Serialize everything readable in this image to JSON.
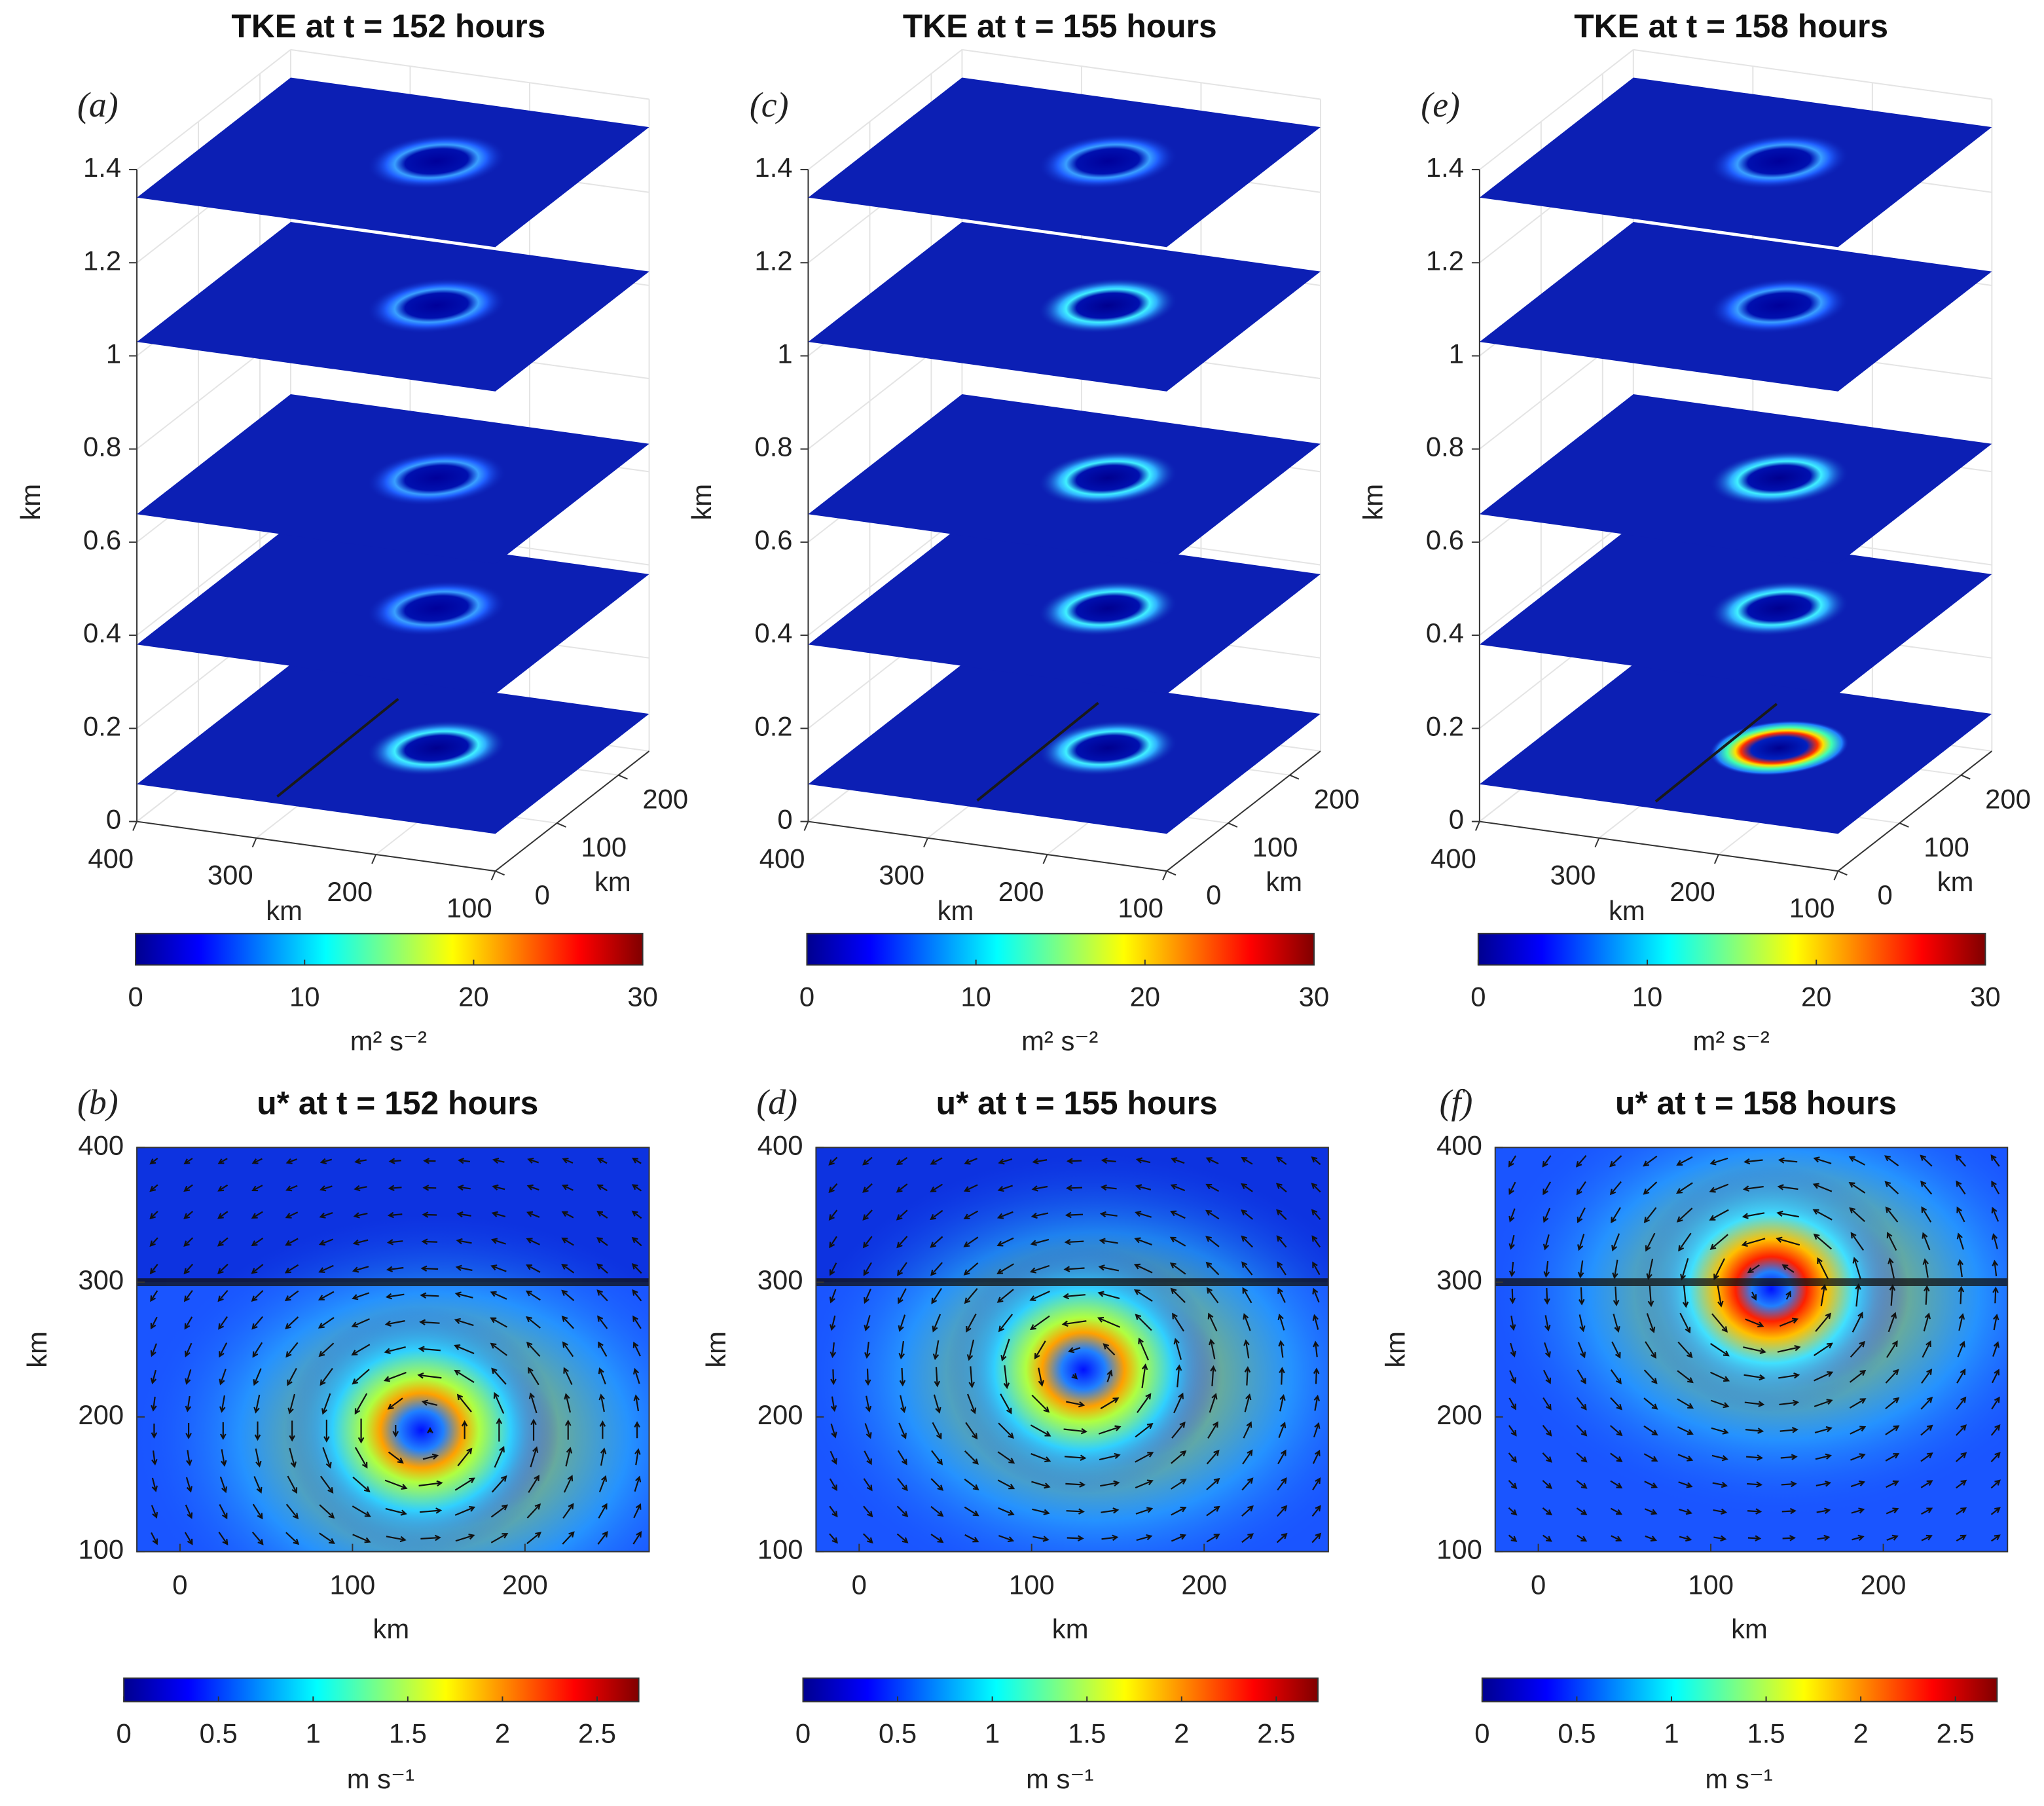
{
  "chart_data": [
    {
      "type": "slice3d",
      "panel": "(a)",
      "title": "TKE at t = 152 hours",
      "xlabel": "km",
      "ylabel": "km",
      "zlabel": "km",
      "xlim": [
        100,
        400
      ],
      "xticks": [
        100,
        200,
        300,
        400
      ],
      "ylim": [
        0,
        250
      ],
      "yticks": [
        0,
        100,
        200
      ],
      "zlim": [
        0,
        1.4
      ],
      "zticks": [
        0,
        0.2,
        0.4,
        0.6,
        0.8,
        1,
        1.2,
        1.4
      ],
      "slice_levels": [
        0.08,
        0.38,
        0.66,
        1.03,
        1.34
      ],
      "clim": [
        0,
        30
      ],
      "cticks": [
        0,
        10,
        20,
        30
      ],
      "clabel": "m² s⁻²",
      "colormap": "jet"
    },
    {
      "type": "contour",
      "panel": "(b)",
      "title": "u* at t = 152 hours",
      "xlabel": "km",
      "ylabel": "km",
      "xlim": [
        -25,
        272
      ],
      "xticks": [
        0,
        100,
        200
      ],
      "ylim": [
        100,
        400
      ],
      "yticks": [
        100,
        200,
        300,
        400
      ],
      "coastline_y": 300,
      "clim": [
        0,
        2.72
      ],
      "cticks": [
        0,
        0.5,
        1,
        1.5,
        2,
        2.5
      ],
      "clabel": "m s⁻¹",
      "colormap": "jet"
    },
    {
      "type": "slice3d",
      "panel": "(c)",
      "title": "TKE at t = 155 hours",
      "xlabel": "km",
      "ylabel": "km",
      "zlabel": "km",
      "xlim": [
        100,
        400
      ],
      "xticks": [
        100,
        200,
        300,
        400
      ],
      "ylim": [
        0,
        250
      ],
      "yticks": [
        0,
        100,
        200
      ],
      "zlim": [
        0,
        1.4
      ],
      "zticks": [
        0,
        0.2,
        0.4,
        0.6,
        0.8,
        1,
        1.2,
        1.4
      ],
      "slice_levels": [
        0.08,
        0.38,
        0.66,
        1.03,
        1.34
      ],
      "clim": [
        0,
        30
      ],
      "cticks": [
        0,
        10,
        20,
        30
      ],
      "clabel": "m² s⁻²",
      "colormap": "jet"
    },
    {
      "type": "contour",
      "panel": "(d)",
      "title": "u* at t = 155 hours",
      "xlabel": "km",
      "ylabel": "km",
      "xlim": [
        -25,
        272
      ],
      "xticks": [
        0,
        100,
        200
      ],
      "ylim": [
        100,
        400
      ],
      "yticks": [
        100,
        200,
        300,
        400
      ],
      "coastline_y": 300,
      "clim": [
        0,
        2.72
      ],
      "cticks": [
        0,
        0.5,
        1,
        1.5,
        2,
        2.5
      ],
      "clabel": "m s⁻¹",
      "colormap": "jet"
    },
    {
      "type": "slice3d",
      "panel": "(e)",
      "title": "TKE at t = 158 hours",
      "xlabel": "km",
      "ylabel": "km",
      "zlabel": "km",
      "xlim": [
        100,
        400
      ],
      "xticks": [
        100,
        200,
        300,
        400
      ],
      "ylim": [
        0,
        250
      ],
      "yticks": [
        0,
        100,
        200
      ],
      "zlim": [
        0,
        1.4
      ],
      "zticks": [
        0,
        0.2,
        0.4,
        0.6,
        0.8,
        1,
        1.2,
        1.4
      ],
      "slice_levels": [
        0.08,
        0.38,
        0.66,
        1.03,
        1.34
      ],
      "clim": [
        0,
        30
      ],
      "cticks": [
        0,
        10,
        20,
        30
      ],
      "clabel": "m² s⁻²",
      "colormap": "jet"
    },
    {
      "type": "contour",
      "panel": "(f)",
      "title": "u* at t = 158 hours",
      "xlabel": "km",
      "ylabel": "km",
      "xlim": [
        -25,
        272
      ],
      "xticks": [
        0,
        100,
        200
      ],
      "ylim": [
        100,
        400
      ],
      "yticks": [
        100,
        200,
        300,
        400
      ],
      "coastline_y": 300,
      "clim": [
        0,
        2.72
      ],
      "cticks": [
        0,
        0.5,
        1,
        1.5,
        2,
        2.5
      ],
      "clabel": "m s⁻¹",
      "colormap": "jet"
    }
  ]
}
